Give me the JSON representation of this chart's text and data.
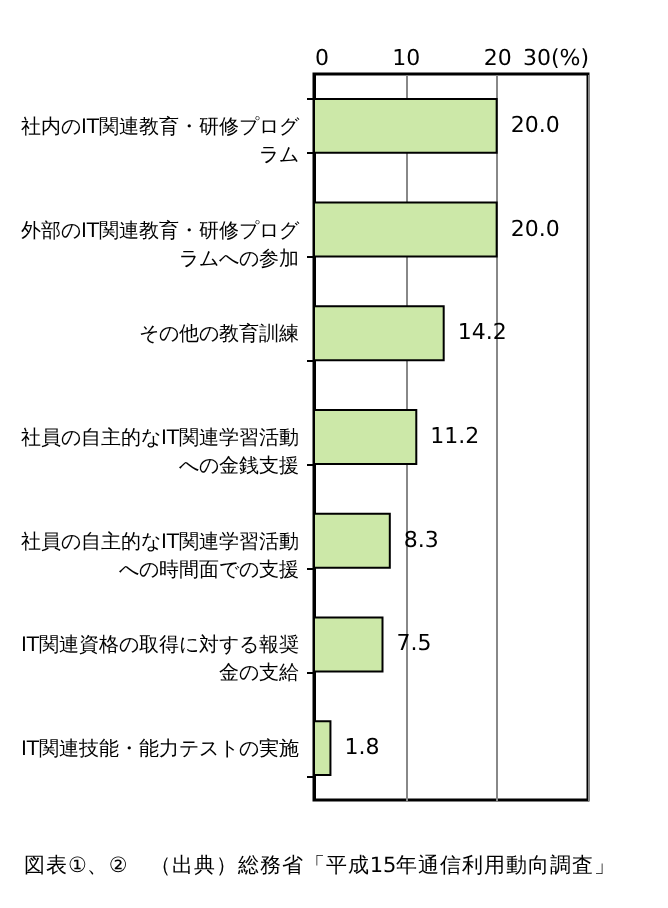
{
  "chart_data": {
    "type": "bar",
    "orientation": "horizontal",
    "categories": [
      "社内のIT関連教育・研修プログラム",
      "外部のIT関連教育・研修プログラムへの参加",
      "その他の教育訓練",
      "社員の自主的なIT関連学習活動への金銭支援",
      "社員の自主的なIT関連学習活動への時間面での支援",
      "IT関連資格の取得に対する報奨金の支給",
      "IT関連技能・能力テストの実施"
    ],
    "values": [
      20.0,
      20.0,
      14.2,
      11.2,
      8.3,
      7.5,
      1.8
    ],
    "value_labels": [
      "20.0",
      "20.0",
      "14.2",
      "11.2",
      "8.3",
      "7.5",
      "1.8"
    ],
    "color": "#cce8a8",
    "xlim": [
      0,
      30
    ],
    "xticks": [
      0,
      10,
      20,
      {
        "value": 30,
        "label": "30(%)"
      }
    ],
    "grid": "x",
    "annotations": [
      "図表①、②　（出典）総務省「平成15年通信利用動向調査」"
    ]
  }
}
